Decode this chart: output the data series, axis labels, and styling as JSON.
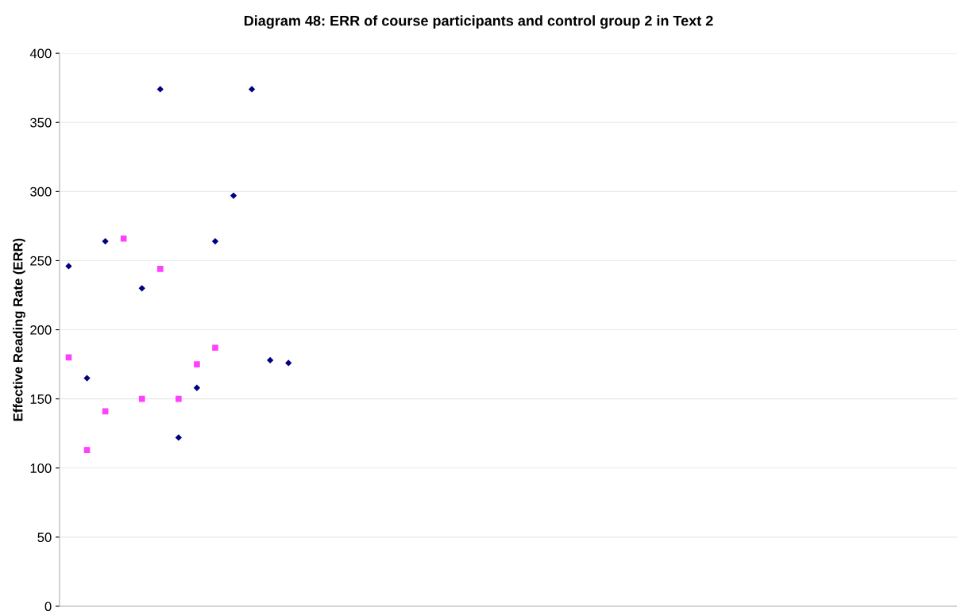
{
  "chart_data": {
    "type": "scatter",
    "title": "Diagram 48: ERR of course participants and control group 2 in Text 2",
    "ylabel": "Effective Reading Rate (ERR)",
    "categories": [
      null,
      null,
      null,
      null,
      null,
      null,
      null,
      null,
      null,
      null,
      null,
      null,
      null,
      null,
      null,
      null,
      null,
      null,
      null,
      null,
      null,
      null,
      null,
      null,
      null,
      null,
      null,
      null,
      null,
      null,
      null,
      null,
      null,
      null,
      null,
      null,
      null,
      null,
      null,
      null,
      null,
      null,
      null,
      null,
      null,
      null,
      null,
      null,
      null
    ],
    "series": [
      {
        "color": "#000080",
        "marker": "diamond",
        "values": [
          246,
          165,
          264,
          null,
          230,
          374,
          122,
          158,
          264,
          297,
          374,
          178,
          176,
          null,
          null,
          null,
          null,
          null,
          null,
          null,
          null,
          null,
          null,
          null,
          null,
          null,
          null,
          null,
          null,
          null,
          null,
          null,
          null,
          null,
          null,
          null,
          null,
          null,
          null,
          null,
          null,
          null,
          null,
          null,
          null,
          null,
          null,
          null,
          null
        ]
      },
      {
        "color": "#ff40ff",
        "marker": "square",
        "values": [
          180,
          113,
          141,
          266,
          150,
          244,
          150,
          175,
          187,
          null,
          null,
          null,
          null,
          null,
          null,
          null,
          null,
          null,
          null,
          null,
          null,
          null,
          null,
          null,
          null,
          null,
          null,
          null,
          null,
          null,
          null,
          null,
          null,
          null,
          null,
          null,
          null,
          null,
          null,
          null,
          null,
          null,
          null,
          null,
          null,
          null,
          null,
          null,
          null
        ]
      }
    ],
    "ylim": [
      0,
      400
    ],
    "yticks": [
      0,
      50,
      100,
      150,
      200,
      250,
      300,
      350,
      400
    ],
    "grid": "y",
    "tick_labels": "y"
  }
}
